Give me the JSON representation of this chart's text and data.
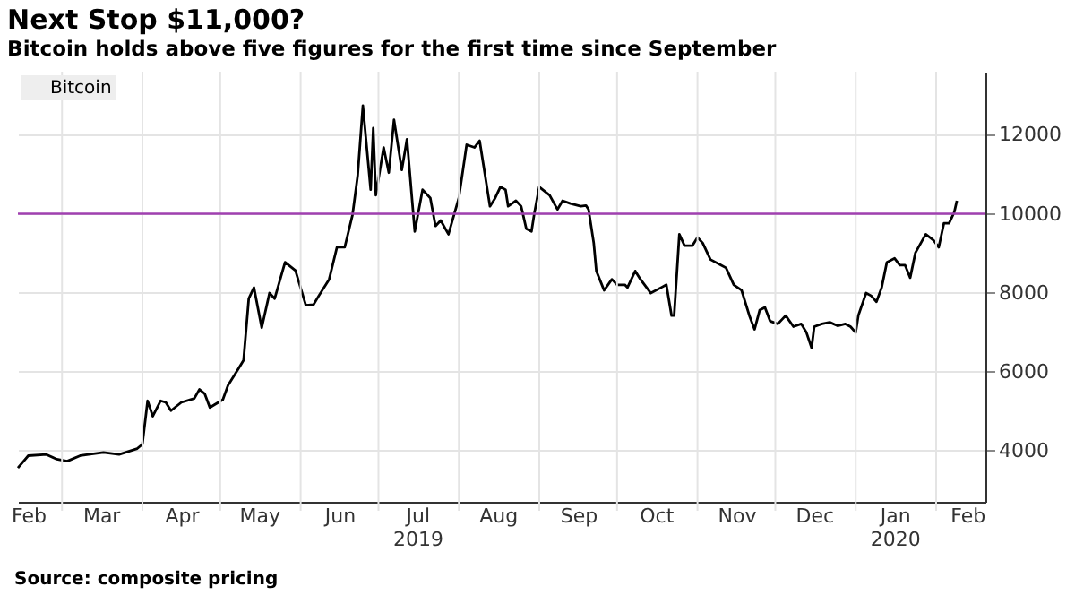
{
  "chart_data": {
    "type": "line",
    "title": "Next Stop $11,000?",
    "subtitle": "Bitcoin holds above five figures for the first time since September",
    "x": [
      "2019-02-12",
      "2019-02-16",
      "2019-02-23",
      "2019-02-27",
      "2019-03-03",
      "2019-03-08",
      "2019-03-17",
      "2019-03-23",
      "2019-03-30",
      "2019-04-01",
      "2019-04-03",
      "2019-04-05",
      "2019-04-08",
      "2019-04-10",
      "2019-04-12",
      "2019-04-16",
      "2019-04-21",
      "2019-04-23",
      "2019-04-25",
      "2019-04-27",
      "2019-05-02",
      "2019-05-04",
      "2019-05-08",
      "2019-05-10",
      "2019-05-12",
      "2019-05-14",
      "2019-05-17",
      "2019-05-20",
      "2019-05-22",
      "2019-05-26",
      "2019-05-30",
      "2019-06-03",
      "2019-06-06",
      "2019-06-08",
      "2019-06-12",
      "2019-06-15",
      "2019-06-18",
      "2019-06-21",
      "2019-06-23",
      "2019-06-25",
      "2019-06-28",
      "2019-06-29",
      "2019-06-30",
      "2019-07-03",
      "2019-07-05",
      "2019-07-07",
      "2019-07-10",
      "2019-07-12",
      "2019-07-15",
      "2019-07-18",
      "2019-07-21",
      "2019-07-23",
      "2019-07-25",
      "2019-07-28",
      "2019-08-01",
      "2019-08-04",
      "2019-08-07",
      "2019-08-09",
      "2019-08-13",
      "2019-08-15",
      "2019-08-17",
      "2019-08-19",
      "2019-08-20",
      "2019-08-23",
      "2019-08-25",
      "2019-08-27",
      "2019-08-29",
      "2019-08-30",
      "2019-09-01",
      "2019-09-05",
      "2019-09-08",
      "2019-09-10",
      "2019-09-13",
      "2019-09-17",
      "2019-09-19",
      "2019-09-20",
      "2019-09-22",
      "2019-09-23",
      "2019-09-26",
      "2019-09-29",
      "2019-10-01",
      "2019-10-04",
      "2019-10-05",
      "2019-10-08",
      "2019-10-10",
      "2019-10-14",
      "2019-10-18",
      "2019-10-20",
      "2019-10-22",
      "2019-10-23",
      "2019-10-25",
      "2019-10-27",
      "2019-10-30",
      "2019-11-01",
      "2019-11-03",
      "2019-11-06",
      "2019-11-10",
      "2019-11-12",
      "2019-11-15",
      "2019-11-18",
      "2019-11-21",
      "2019-11-23",
      "2019-11-25",
      "2019-11-27",
      "2019-11-29",
      "2019-12-02",
      "2019-12-05",
      "2019-12-08",
      "2019-12-11",
      "2019-12-13",
      "2019-12-15",
      "2019-12-16",
      "2019-12-19",
      "2019-12-22",
      "2019-12-25",
      "2019-12-28",
      "2019-12-30",
      "2020-01-01",
      "2020-01-02",
      "2020-01-05",
      "2020-01-07",
      "2020-01-09",
      "2020-01-11",
      "2020-01-13",
      "2020-01-16",
      "2020-01-18",
      "2020-01-20",
      "2020-01-22",
      "2020-01-24",
      "2020-01-28",
      "2020-01-31",
      "2020-02-02",
      "2020-02-04",
      "2020-02-06",
      "2020-02-08",
      "2020-02-09"
    ],
    "series": [
      {
        "name": "Bitcoin",
        "color": "#000000",
        "values": [
          3560,
          3870,
          3900,
          3780,
          3730,
          3870,
          3950,
          3900,
          4050,
          4160,
          5260,
          4870,
          5260,
          5220,
          5010,
          5220,
          5320,
          5550,
          5440,
          5090,
          5290,
          5650,
          6070,
          6290,
          7850,
          8130,
          7110,
          7990,
          7850,
          8770,
          8560,
          7680,
          7700,
          7920,
          8340,
          9150,
          9150,
          9970,
          10970,
          12740,
          10610,
          12170,
          10470,
          11680,
          11040,
          12380,
          11110,
          11890,
          9550,
          10610,
          10400,
          9690,
          9830,
          9480,
          10400,
          11750,
          11680,
          11850,
          10190,
          10400,
          10680,
          10610,
          10190,
          10330,
          10190,
          9620,
          9550,
          9970,
          10680,
          10470,
          10110,
          10330,
          10260,
          10190,
          10210,
          10110,
          9260,
          8550,
          8060,
          8340,
          8200,
          8200,
          8130,
          8550,
          8340,
          7990,
          8130,
          8200,
          7420,
          7420,
          9480,
          9190,
          9190,
          9400,
          9260,
          8840,
          8700,
          8630,
          8200,
          8060,
          7420,
          7070,
          7560,
          7630,
          7280,
          7210,
          7420,
          7140,
          7210,
          6990,
          6600,
          7140,
          7210,
          7250,
          7160,
          7210,
          7140,
          6990,
          7420,
          7990,
          7920,
          7770,
          8130,
          8770,
          8870,
          8700,
          8700,
          8380,
          9010,
          9480,
          9330,
          9150,
          9760,
          9760,
          10040,
          10330
        ]
      }
    ],
    "xlim": [
      "2019-02-12",
      "2020-02-20"
    ],
    "xticks": [
      {
        "value": "2019-02-16",
        "label": "Feb"
      },
      {
        "value": "2019-03-01",
        "label": null
      },
      {
        "value": "2019-03-16",
        "label": "Mar"
      },
      {
        "value": "2019-04-01",
        "label": null
      },
      {
        "value": "2019-04-16",
        "label": "Apr"
      },
      {
        "value": "2019-05-01",
        "label": null
      },
      {
        "value": "2019-05-16",
        "label": "May"
      },
      {
        "value": "2019-06-01",
        "label": null
      },
      {
        "value": "2019-06-16",
        "label": "Jun"
      },
      {
        "value": "2019-07-01",
        "label": null
      },
      {
        "value": "2019-07-16",
        "label": "Jul\n2019"
      },
      {
        "value": "2019-08-01",
        "label": null
      },
      {
        "value": "2019-08-16",
        "label": "Aug"
      },
      {
        "value": "2019-09-01",
        "label": null
      },
      {
        "value": "2019-09-16",
        "label": "Sep"
      },
      {
        "value": "2019-10-01",
        "label": null
      },
      {
        "value": "2019-10-16",
        "label": "Oct"
      },
      {
        "value": "2019-11-01",
        "label": null
      },
      {
        "value": "2019-11-16",
        "label": "Nov"
      },
      {
        "value": "2019-12-01",
        "label": null
      },
      {
        "value": "2019-12-16",
        "label": "Dec"
      },
      {
        "value": "2020-01-01",
        "label": null
      },
      {
        "value": "2020-01-16",
        "label": "Jan\n2020"
      },
      {
        "value": "2020-02-01",
        "label": null
      },
      {
        "value": "2020-02-13",
        "label": "Feb"
      }
    ],
    "ylim": [
      2700,
      13600
    ],
    "yticks": [
      4000,
      6000,
      8000,
      10000,
      12000
    ],
    "ref_lines": [
      {
        "axis": "y",
        "value": 10000,
        "color": "#a040b0"
      }
    ],
    "grid": true,
    "legend": "top left",
    "annotations": [
      "Source: composite pricing"
    ]
  }
}
